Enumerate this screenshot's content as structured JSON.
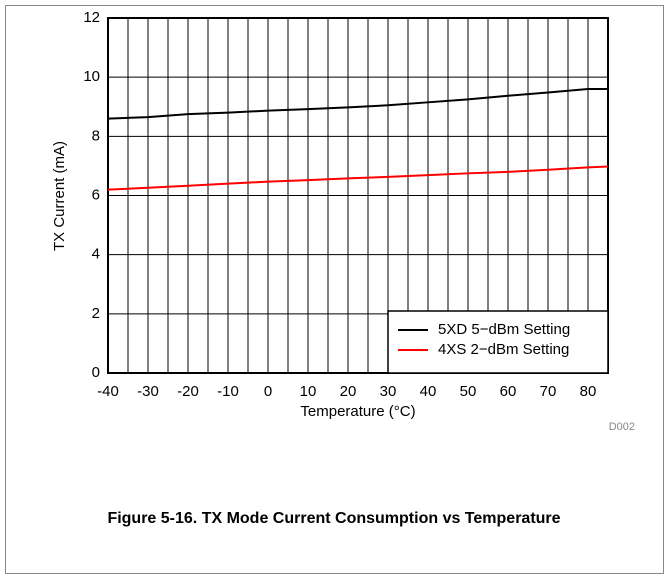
{
  "chart_data": {
    "type": "line",
    "xlabel": "Temperature (°C)",
    "ylabel": "TX Current (mA)",
    "x": [
      -40,
      -30,
      -20,
      -10,
      0,
      10,
      20,
      30,
      40,
      50,
      60,
      70,
      80,
      85
    ],
    "series": [
      {
        "name": "5XD 5−dBm Setting",
        "color": "#000000",
        "values": [
          8.6,
          8.65,
          8.75,
          8.8,
          8.87,
          8.92,
          8.98,
          9.05,
          9.15,
          9.25,
          9.37,
          9.48,
          9.6,
          9.6
        ]
      },
      {
        "name": "4XS 2−dBm Setting",
        "color": "#ff0000",
        "values": [
          6.2,
          6.26,
          6.33,
          6.4,
          6.47,
          6.52,
          6.58,
          6.63,
          6.69,
          6.75,
          6.8,
          6.87,
          6.95,
          6.98
        ]
      }
    ],
    "xlim": [
      -40,
      85
    ],
    "ylim": [
      0,
      12
    ],
    "xticks": [
      -40,
      -30,
      -20,
      -10,
      0,
      10,
      20,
      30,
      40,
      50,
      60,
      70,
      80
    ],
    "x_minor_ticks": [
      -35,
      -25,
      -15,
      -5,
      5,
      15,
      25,
      35,
      45,
      55,
      65,
      75
    ],
    "yticks": [
      0,
      2,
      4,
      6,
      8,
      10,
      12
    ],
    "grid": true,
    "legend": "lower right"
  },
  "figure": {
    "id": "D002",
    "caption": "Figure 5-16. TX Mode Current Consumption vs Temperature"
  }
}
